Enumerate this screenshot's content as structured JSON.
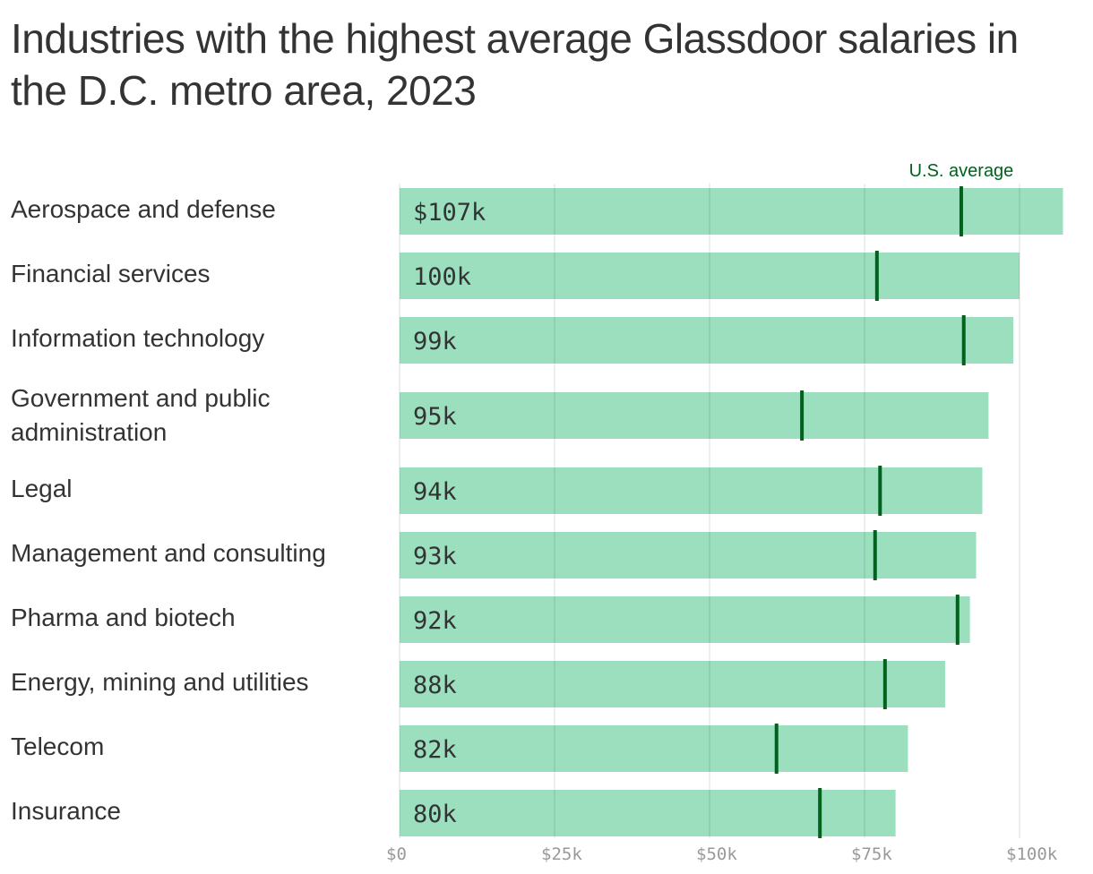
{
  "chart_data": {
    "type": "bar",
    "orientation": "horizontal",
    "title": "Industries with the highest average Glassdoor salaries in the D.C. metro area, 2023",
    "categories": [
      "Aerospace and defense",
      "Financial services",
      "Information technology",
      "Government and public administration",
      "Legal",
      "Management and consulting",
      "Pharma and biotech",
      "Energy, mining and utilities",
      "Telecom",
      "Insurance"
    ],
    "series": [
      {
        "values": [
          107,
          100,
          99,
          95,
          94,
          93,
          92,
          88,
          82,
          80
        ]
      },
      {
        "name": "U.S. average",
        "values": [
          90.6,
          77.0,
          91.0,
          64.9,
          77.5,
          76.7,
          90.0,
          78.3,
          60.8,
          67.8
        ]
      }
    ],
    "value_labels": [
      "$107k",
      "100k",
      "99k",
      "95k",
      "94k",
      "93k",
      "92k",
      "88k",
      "82k",
      "80k"
    ],
    "x_ticks": [
      0,
      25,
      50,
      75,
      100
    ],
    "x_tick_labels": [
      "$0",
      "$25k",
      "$50k",
      "$75k",
      "$100k"
    ],
    "xlim": [
      0,
      107
    ],
    "unit": "thousand USD",
    "grid": true,
    "annotation": "U.S. average",
    "colors": {
      "bar": "#9bdfbf",
      "marker": "#00621d",
      "text": "#333333",
      "tick": "#999999",
      "grid": "#dddddd"
    }
  }
}
